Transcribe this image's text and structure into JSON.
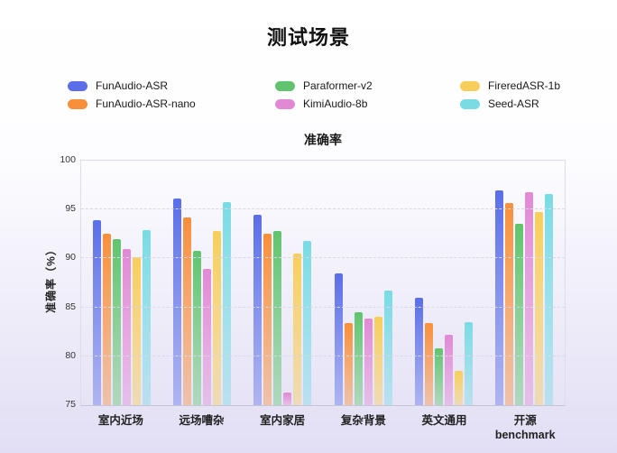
{
  "title": "测试场景",
  "chart_data": {
    "type": "bar",
    "title": "准确率",
    "xlabel": "",
    "ylabel": "准确率（%）",
    "ylim": [
      75,
      100
    ],
    "yticks": [
      75,
      80,
      85,
      90,
      95,
      100
    ],
    "grid": "dashed-horizontal",
    "legend_position": "top",
    "categories": [
      "室内近场",
      "远场嘈杂",
      "室内家居",
      "复杂背景",
      "英文通用",
      "开源\nbenchmark"
    ],
    "series": [
      {
        "name": "FunAudio-ASR",
        "color": "#5A6EE8",
        "values": [
          93.9,
          96.1,
          94.5,
          88.5,
          86.0,
          97.0
        ]
      },
      {
        "name": "FunAudio-ASR-nano",
        "color": "#F88F3B",
        "values": [
          92.5,
          94.2,
          92.5,
          83.4,
          83.4,
          95.7
        ]
      },
      {
        "name": "Paraformer-v2",
        "color": "#60C46E",
        "values": [
          92.0,
          90.8,
          92.8,
          84.5,
          80.8,
          93.5
        ]
      },
      {
        "name": "KimiAudio-8b",
        "color": "#E189D5",
        "values": [
          91.0,
          88.9,
          76.3,
          83.9,
          82.2,
          96.8
        ]
      },
      {
        "name": "FireredASR-1b",
        "color": "#F8CE5A",
        "values": [
          90.1,
          92.8,
          90.5,
          84.0,
          78.5,
          94.7
        ]
      },
      {
        "name": "Seed-ASR",
        "color": "#79DBE4",
        "values": [
          92.9,
          95.8,
          91.8,
          86.7,
          83.5,
          96.6
        ]
      }
    ]
  }
}
